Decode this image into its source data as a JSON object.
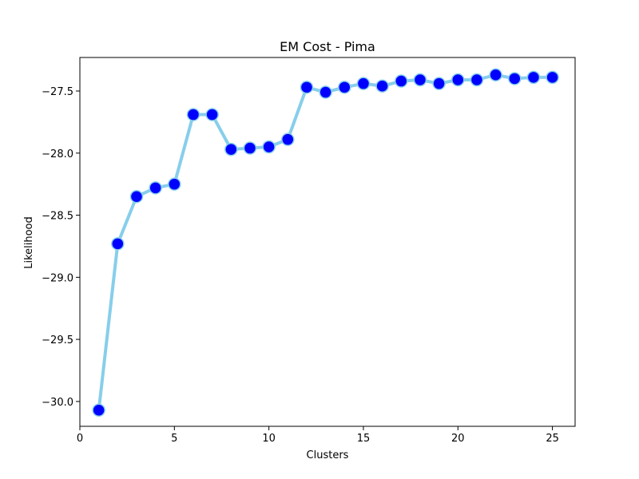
{
  "chart_data": {
    "type": "line",
    "title": "EM Cost - Pima",
    "xlabel": "Clusters",
    "ylabel": "Likelihood",
    "xlim": [
      0,
      26.2
    ],
    "ylim": [
      -30.2,
      -27.23
    ],
    "xticks": [
      0,
      5,
      10,
      15,
      20,
      25
    ],
    "yticks": [
      -30.0,
      -29.5,
      -29.0,
      -28.5,
      -28.0,
      -27.5
    ],
    "xtick_labels": [
      "0",
      "5",
      "10",
      "15",
      "20",
      "25"
    ],
    "ytick_labels": [
      "−30.0",
      "−29.5",
      "−29.0",
      "−28.5",
      "−28.0",
      "−27.5"
    ],
    "grid": false,
    "series": [
      {
        "line_color": "#87ceeb",
        "marker_color": "#0000ff",
        "marker_edge_color": "#87ceeb",
        "x": [
          1,
          2,
          3,
          4,
          5,
          6,
          7,
          8,
          9,
          10,
          11,
          12,
          13,
          14,
          15,
          16,
          17,
          18,
          19,
          20,
          21,
          22,
          23,
          24,
          25
        ],
        "y": [
          -30.07,
          -28.73,
          -28.35,
          -28.28,
          -28.25,
          -27.69,
          -27.69,
          -27.97,
          -27.96,
          -27.95,
          -27.89,
          -27.47,
          -27.51,
          -27.47,
          -27.44,
          -27.46,
          -27.42,
          -27.41,
          -27.44,
          -27.41,
          -27.41,
          -27.37,
          -27.4,
          -27.39,
          -27.39
        ]
      }
    ]
  }
}
